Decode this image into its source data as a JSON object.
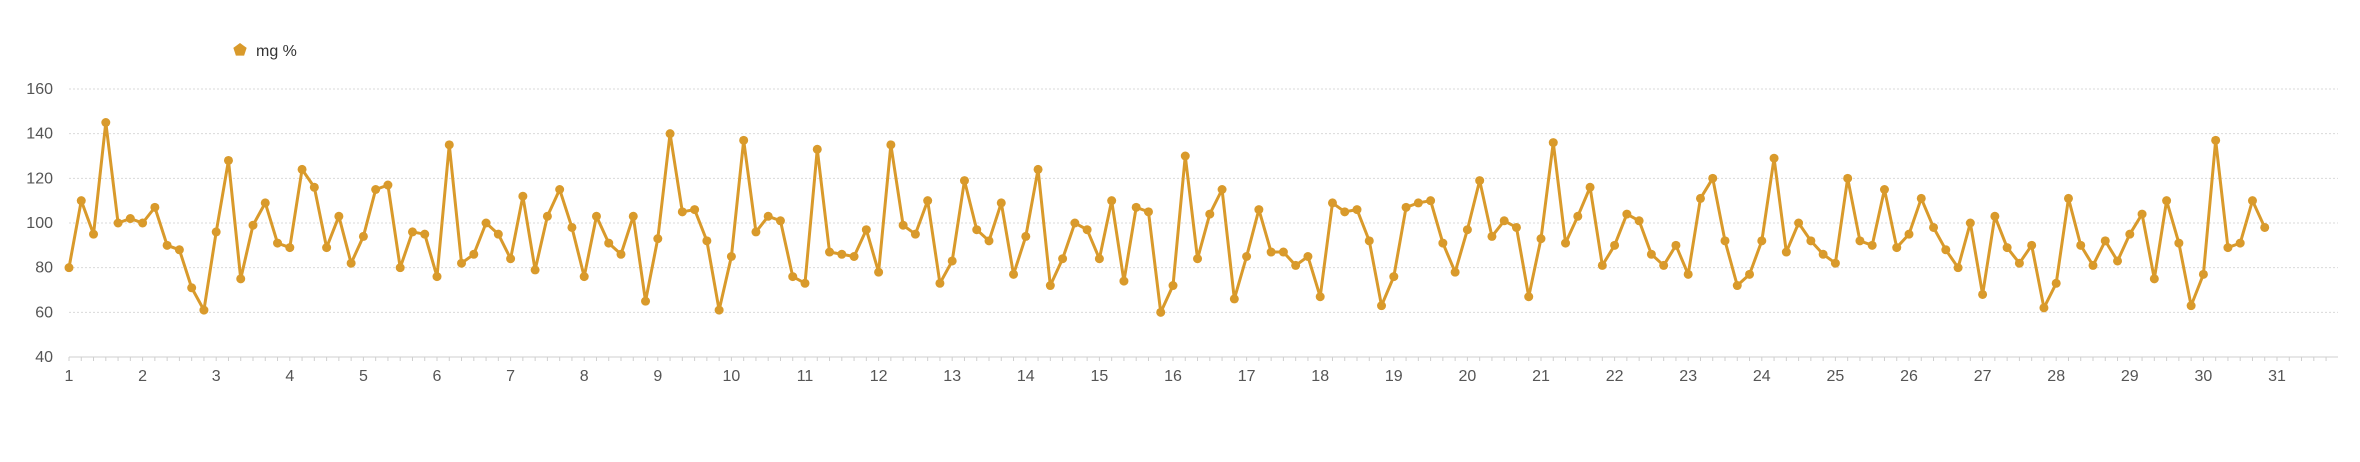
{
  "colors": {
    "series": "#d99a2b",
    "grid": "#d9d9d9",
    "text": "#555555"
  },
  "legend": {
    "label": "mg %",
    "placement": "top-left"
  },
  "chart_data": {
    "type": "line",
    "title": "",
    "xlabel": "",
    "ylabel": "",
    "xlim": [
      1,
      31
    ],
    "ylim": [
      40,
      160
    ],
    "y_ticks": [
      40,
      60,
      80,
      100,
      120,
      140,
      160
    ],
    "x_ticks": [
      1,
      2,
      3,
      4,
      5,
      6,
      7,
      8,
      9,
      10,
      11,
      12,
      13,
      14,
      15,
      16,
      17,
      18,
      19,
      20,
      21,
      22,
      23,
      24,
      25,
      26,
      27,
      28,
      29,
      30,
      31
    ],
    "grid": "horizontal",
    "series": [
      {
        "name": "mg %",
        "values": [
          [
            1,
            80
          ],
          [
            1.1667,
            110
          ],
          [
            1.3333,
            95
          ],
          [
            1.5,
            145
          ],
          [
            1.6667,
            100
          ],
          [
            1.8333,
            102
          ],
          [
            2,
            100
          ],
          [
            2.1667,
            107
          ],
          [
            2.3333,
            90
          ],
          [
            2.5,
            88
          ],
          [
            2.6667,
            71
          ],
          [
            2.8333,
            61
          ],
          [
            3,
            96
          ],
          [
            3.1667,
            128
          ],
          [
            3.3333,
            75
          ],
          [
            3.5,
            99
          ],
          [
            3.6667,
            109
          ],
          [
            3.8333,
            91
          ],
          [
            4,
            89
          ],
          [
            4.1667,
            124
          ],
          [
            4.3333,
            116
          ],
          [
            4.5,
            89
          ],
          [
            4.6667,
            103
          ],
          [
            4.8333,
            82
          ],
          [
            5,
            94
          ],
          [
            5.1667,
            115
          ],
          [
            5.3333,
            117
          ],
          [
            5.5,
            80
          ],
          [
            5.6667,
            96
          ],
          [
            5.8333,
            95
          ],
          [
            6,
            76
          ],
          [
            6.1667,
            135
          ],
          [
            6.3333,
            82
          ],
          [
            6.5,
            86
          ],
          [
            6.6667,
            100
          ],
          [
            6.8333,
            95
          ],
          [
            7,
            84
          ],
          [
            7.1667,
            112
          ],
          [
            7.3333,
            79
          ],
          [
            7.5,
            103
          ],
          [
            7.6667,
            115
          ],
          [
            7.8333,
            98
          ],
          [
            8,
            76
          ],
          [
            8.1667,
            103
          ],
          [
            8.3333,
            91
          ],
          [
            8.5,
            86
          ],
          [
            8.6667,
            103
          ],
          [
            8.8333,
            65
          ],
          [
            9,
            93
          ],
          [
            9.1667,
            140
          ],
          [
            9.3333,
            105
          ],
          [
            9.5,
            106
          ],
          [
            9.6667,
            92
          ],
          [
            9.8333,
            61
          ],
          [
            10,
            85
          ],
          [
            10.1667,
            137
          ],
          [
            10.3333,
            96
          ],
          [
            10.5,
            103
          ],
          [
            10.6667,
            101
          ],
          [
            10.8333,
            76
          ],
          [
            11,
            73
          ],
          [
            11.1667,
            133
          ],
          [
            11.3333,
            87
          ],
          [
            11.5,
            86
          ],
          [
            11.6667,
            85
          ],
          [
            11.8333,
            97
          ],
          [
            12,
            78
          ],
          [
            12.1667,
            135
          ],
          [
            12.3333,
            99
          ],
          [
            12.5,
            95
          ],
          [
            12.6667,
            110
          ],
          [
            12.8333,
            73
          ],
          [
            13,
            83
          ],
          [
            13.1667,
            119
          ],
          [
            13.3333,
            97
          ],
          [
            13.5,
            92
          ],
          [
            13.6667,
            109
          ],
          [
            13.8333,
            77
          ],
          [
            14,
            94
          ],
          [
            14.1667,
            124
          ],
          [
            14.3333,
            72
          ],
          [
            14.5,
            84
          ],
          [
            14.6667,
            100
          ],
          [
            14.8333,
            97
          ],
          [
            15,
            84
          ],
          [
            15.1667,
            110
          ],
          [
            15.3333,
            74
          ],
          [
            15.5,
            107
          ],
          [
            15.6667,
            105
          ],
          [
            15.8333,
            60
          ],
          [
            16,
            72
          ],
          [
            16.1667,
            130
          ],
          [
            16.3333,
            84
          ],
          [
            16.5,
            104
          ],
          [
            16.6667,
            115
          ],
          [
            16.8333,
            66
          ],
          [
            17,
            85
          ],
          [
            17.1667,
            106
          ],
          [
            17.3333,
            87
          ],
          [
            17.5,
            87
          ],
          [
            17.6667,
            81
          ],
          [
            17.8333,
            85
          ],
          [
            18,
            67
          ],
          [
            18.1667,
            109
          ],
          [
            18.3333,
            105
          ],
          [
            18.5,
            106
          ],
          [
            18.6667,
            92
          ],
          [
            18.8333,
            63
          ],
          [
            19,
            76
          ],
          [
            19.1667,
            107
          ],
          [
            19.3333,
            109
          ],
          [
            19.5,
            110
          ],
          [
            19.6667,
            91
          ],
          [
            19.8333,
            78
          ],
          [
            20,
            97
          ],
          [
            20.1667,
            119
          ],
          [
            20.3333,
            94
          ],
          [
            20.5,
            101
          ],
          [
            20.6667,
            98
          ],
          [
            20.8333,
            67
          ],
          [
            21,
            93
          ],
          [
            21.1667,
            136
          ],
          [
            21.3333,
            91
          ],
          [
            21.5,
            103
          ],
          [
            21.6667,
            116
          ],
          [
            21.8333,
            81
          ],
          [
            22,
            90
          ],
          [
            22.1667,
            104
          ],
          [
            22.3333,
            101
          ],
          [
            22.5,
            86
          ],
          [
            22.6667,
            81
          ],
          [
            22.8333,
            90
          ],
          [
            23,
            77
          ],
          [
            23.1667,
            111
          ],
          [
            23.3333,
            120
          ],
          [
            23.5,
            92
          ],
          [
            23.6667,
            72
          ],
          [
            23.8333,
            77
          ],
          [
            24,
            92
          ],
          [
            24.1667,
            129
          ],
          [
            24.3333,
            87
          ],
          [
            24.5,
            100
          ],
          [
            24.6667,
            92
          ],
          [
            24.8333,
            86
          ],
          [
            25,
            82
          ],
          [
            25.1667,
            120
          ],
          [
            25.3333,
            92
          ],
          [
            25.5,
            90
          ],
          [
            25.6667,
            115
          ],
          [
            25.8333,
            89
          ],
          [
            26,
            95
          ],
          [
            26.1667,
            111
          ],
          [
            26.3333,
            98
          ],
          [
            26.5,
            88
          ],
          [
            26.6667,
            80
          ],
          [
            26.8333,
            100
          ],
          [
            27,
            68
          ],
          [
            27.1667,
            103
          ],
          [
            27.3333,
            89
          ],
          [
            27.5,
            82
          ],
          [
            27.6667,
            90
          ],
          [
            27.8333,
            62
          ],
          [
            28,
            73
          ],
          [
            28.1667,
            111
          ],
          [
            28.3333,
            90
          ],
          [
            28.5,
            81
          ],
          [
            28.6667,
            92
          ],
          [
            28.8333,
            83
          ],
          [
            29,
            95
          ],
          [
            29.1667,
            104
          ],
          [
            29.3333,
            75
          ],
          [
            29.5,
            110
          ],
          [
            29.6667,
            91
          ],
          [
            29.8333,
            63
          ],
          [
            30,
            77
          ],
          [
            30.1667,
            137
          ],
          [
            30.3333,
            89
          ],
          [
            30.5,
            91
          ],
          [
            30.6667,
            110
          ],
          [
            30.8333,
            98
          ]
        ]
      }
    ]
  }
}
